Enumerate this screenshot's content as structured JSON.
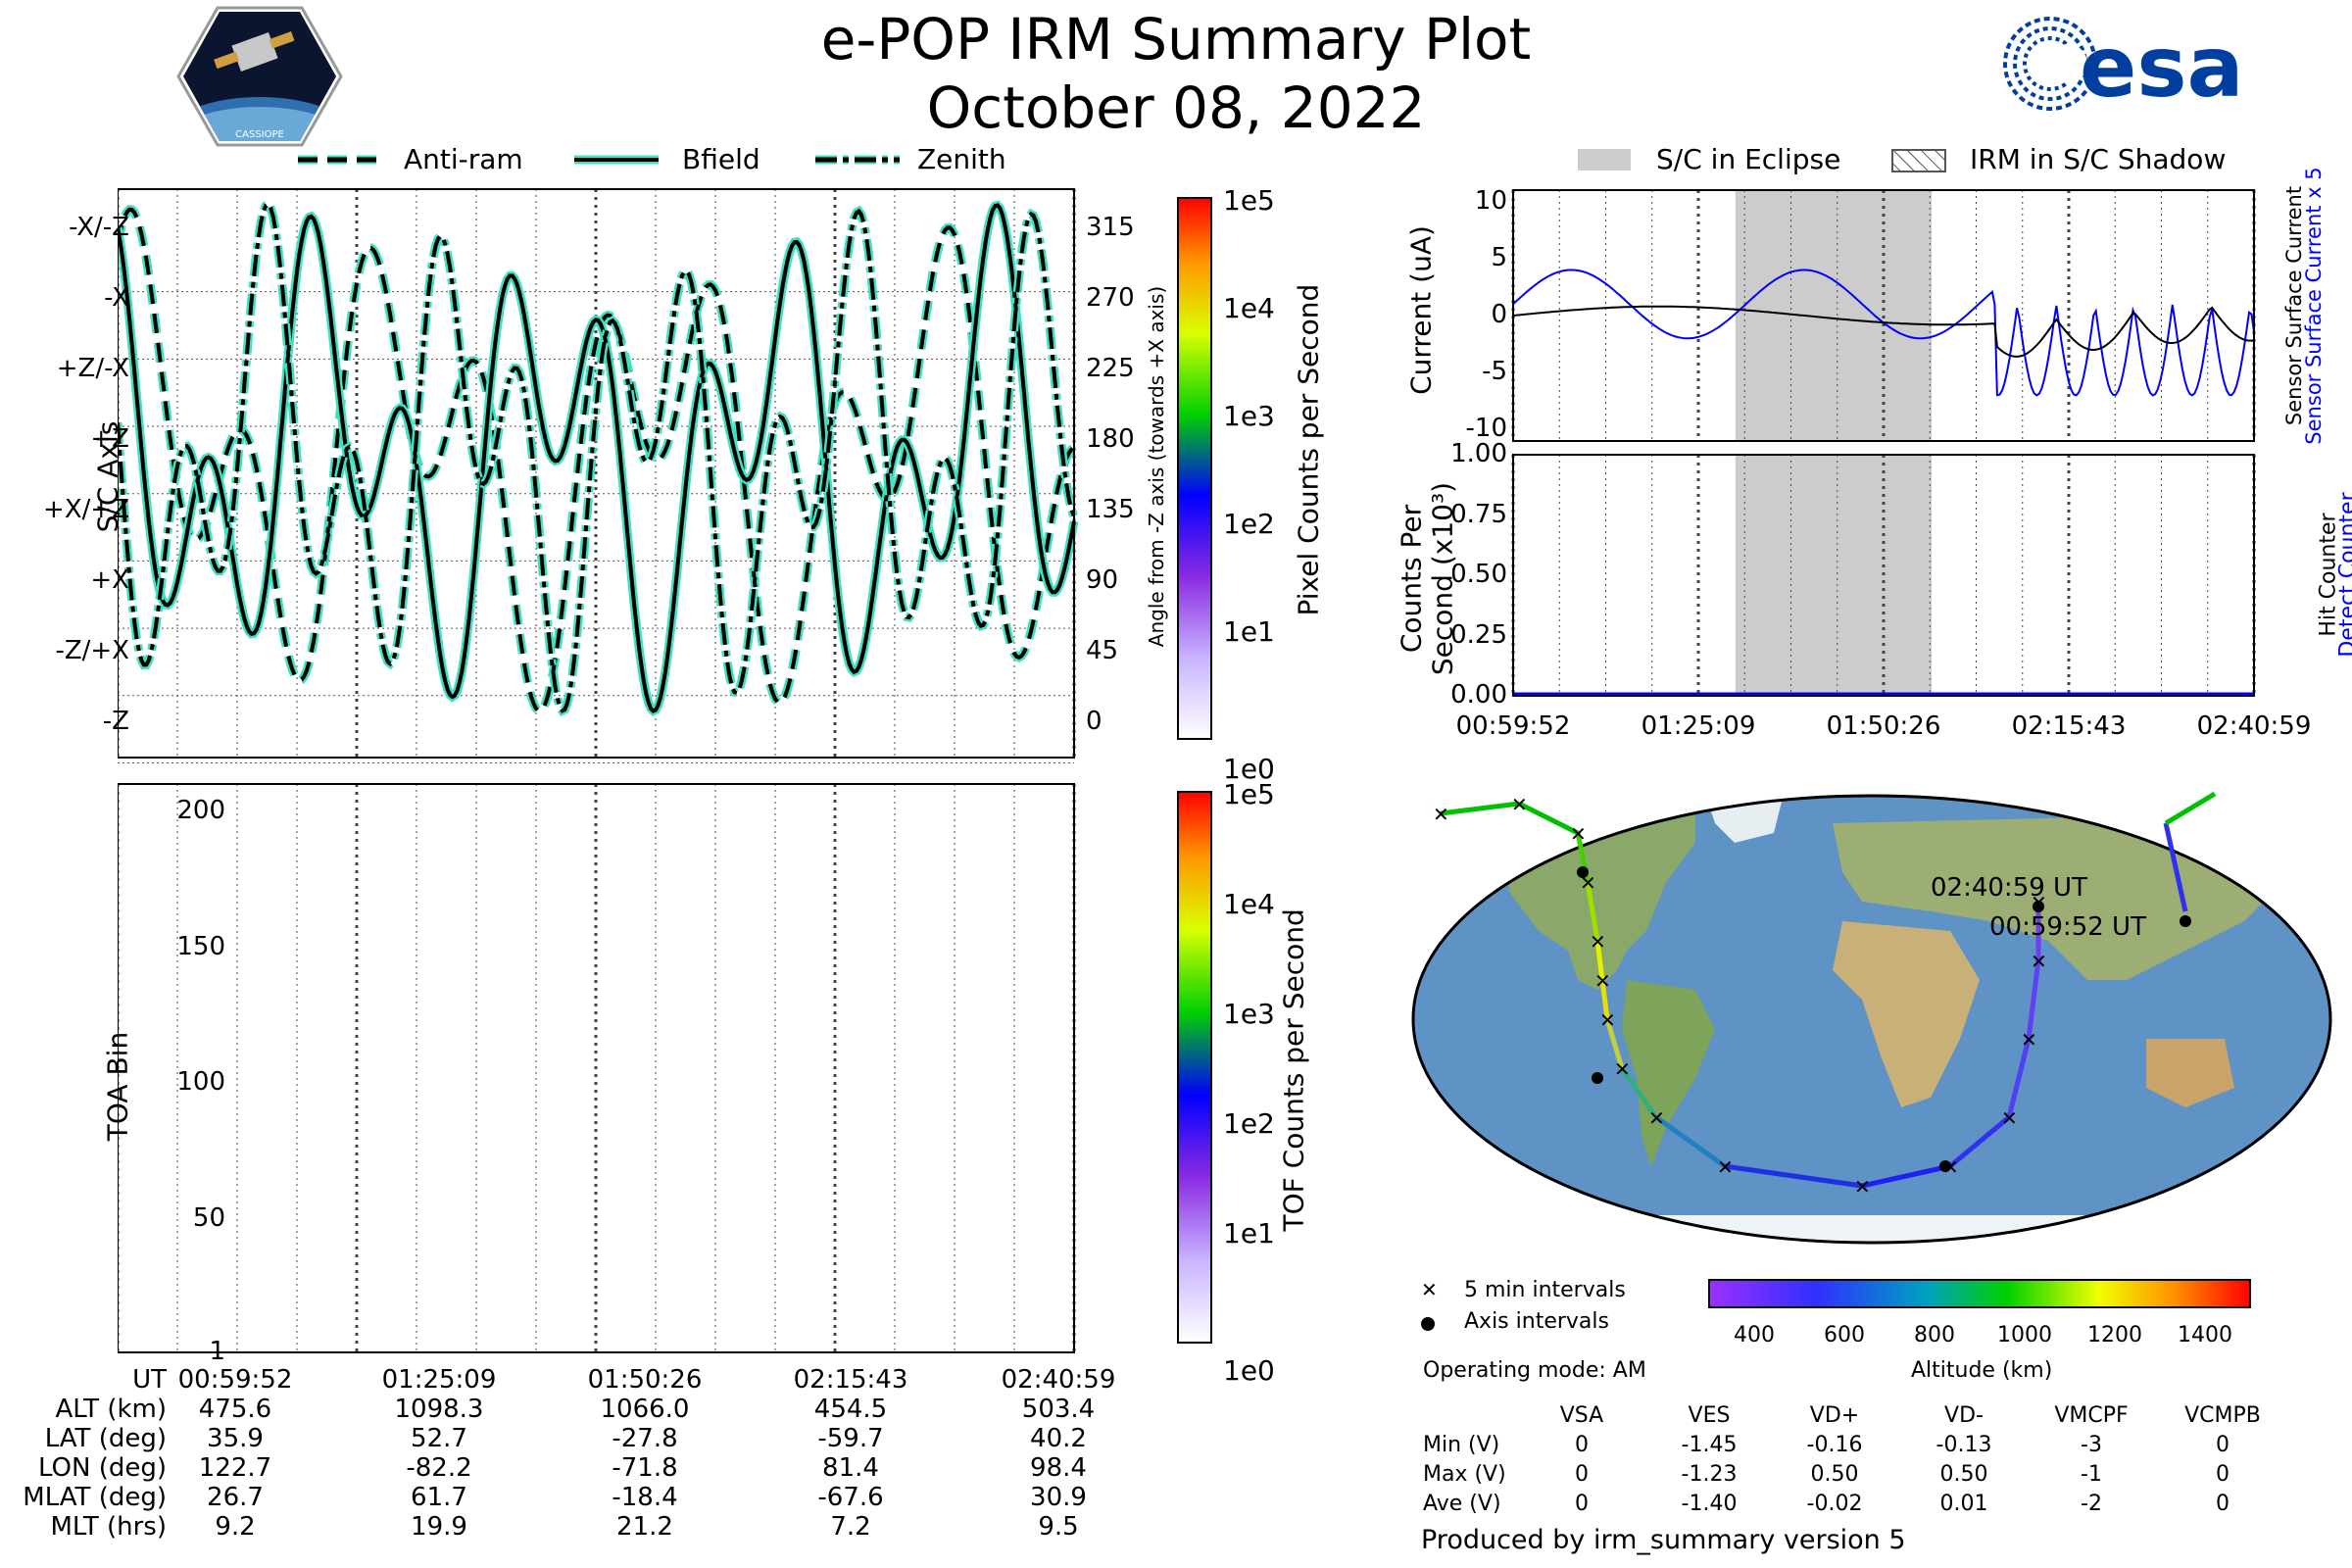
{
  "header": {
    "title": "e-POP IRM Summary Plot",
    "date": "October 08, 2022",
    "left_logo_text": "CASSIOPE",
    "esa_logo_text": "esa"
  },
  "colors": {
    "series_line": "#000000",
    "series_glow": "#40e0c0",
    "eclipse": "#cccccc",
    "blue": "#0000ff",
    "panel_border": "#000000"
  },
  "legends": {
    "attitude": [
      "Anti-ram",
      "Bfield",
      "Zenith"
    ],
    "eclipse": [
      "S/C in Eclipse",
      "IRM in S/C Shadow"
    ],
    "map": [
      "5 min intervals",
      "Axis intervals"
    ]
  },
  "chart_data": [
    {
      "id": "attitude",
      "type": "line",
      "ylabel": "S/C Axis",
      "y2label": "Angle from -Z axis (towards +X axis)",
      "yticks_left": [
        "-X/-Z",
        "-X",
        "+Z/-X",
        "+Z",
        "+X/+Z",
        "+X",
        "-Z/+X",
        "-Z"
      ],
      "yticks_right": [
        "315",
        "270",
        "225",
        "180",
        "135",
        "90",
        "45",
        "0"
      ],
      "ylim": [
        0,
        360
      ],
      "series": [
        {
          "name": "Anti-ram",
          "style": "dashed"
        },
        {
          "name": "Bfield",
          "style": "solid"
        },
        {
          "name": "Zenith",
          "style": "dashdot"
        }
      ],
      "colorbar": {
        "label": "Pixel Counts per Second",
        "ticks": [
          "1e5",
          "1e4",
          "1e3",
          "1e2",
          "1e1",
          "1e0"
        ]
      }
    },
    {
      "id": "toa",
      "type": "heatmap",
      "ylabel": "TOA Bin",
      "yticks": [
        "200",
        "150",
        "100",
        "50",
        "1"
      ],
      "ylim": [
        1,
        210
      ],
      "colorbar": {
        "label": "TOF Counts per Second",
        "ticks": [
          "1e5",
          "1e4",
          "1e3",
          "1e2",
          "1e1",
          "1e0"
        ]
      },
      "xticks": [
        "00:59:52",
        "01:25:09",
        "01:50:26",
        "02:15:43",
        "02:40:59"
      ]
    },
    {
      "id": "current",
      "type": "line",
      "ylabel": "Current (uA)",
      "yticks": [
        "10",
        "5",
        "0",
        "-5",
        "-10"
      ],
      "ylim": [
        -11,
        11
      ],
      "right_labels": [
        {
          "text": "Sensor Surface Current x 5",
          "color": "blue"
        },
        {
          "text": "Sensor Surface Current",
          "color": "black"
        }
      ],
      "eclipse_range": [
        "01:31:00",
        "01:56:00"
      ],
      "series": [
        {
          "name": "Sensor Surface Current x 5",
          "color": "blue"
        },
        {
          "name": "Sensor Surface Current",
          "color": "black"
        }
      ]
    },
    {
      "id": "counts",
      "type": "line",
      "ylabel": "Counts Per",
      "ylabel2": "Second (x10³)",
      "yticks": [
        "1.00",
        "0.75",
        "0.50",
        "0.25",
        "0.00"
      ],
      "ylim": [
        0,
        1
      ],
      "xticks": [
        "00:59:52",
        "01:25:09",
        "01:50:26",
        "02:15:43",
        "02:40:59"
      ],
      "right_labels": [
        {
          "text": "Detect Counter",
          "color": "blue"
        },
        {
          "text": "Hit Counter",
          "color": "black"
        }
      ],
      "series": [
        {
          "name": "Detect Counter",
          "values": [
            0,
            0
          ]
        },
        {
          "name": "Hit Counter",
          "values": [
            0,
            0
          ]
        }
      ]
    },
    {
      "id": "altitude_colorbar",
      "type": "heatmap",
      "label": "Altitude (km)",
      "ticks": [
        "400",
        "600",
        "800",
        "1000",
        "1200",
        "1400"
      ],
      "range": [
        300,
        1500
      ]
    }
  ],
  "map": {
    "label_start": "00:59:52 UT",
    "label_end": "02:40:59 UT"
  },
  "ephemeris": {
    "row_labels": [
      "UT",
      "ALT (km)",
      "LAT (deg)",
      "LON (deg)",
      "MLAT (deg)",
      "MLT (hrs)"
    ],
    "columns": [
      [
        "00:59:52",
        "475.6",
        "35.9",
        "122.7",
        "26.7",
        "9.2"
      ],
      [
        "01:25:09",
        "1098.3",
        "52.7",
        "-82.2",
        "61.7",
        "19.9"
      ],
      [
        "01:50:26",
        "1066.0",
        "-27.8",
        "-71.8",
        "-18.4",
        "21.2"
      ],
      [
        "02:15:43",
        "454.5",
        "-59.7",
        "81.4",
        "-67.6",
        "7.2"
      ],
      [
        "02:40:59",
        "503.4",
        "40.2",
        "98.4",
        "30.9",
        "9.5"
      ]
    ]
  },
  "operating_mode": "Operating mode: AM",
  "voltages": {
    "headers": [
      "VSA",
      "VES",
      "VD+",
      "VD-",
      "VMCPF",
      "VCMPB"
    ],
    "rows": [
      {
        "label": "Min (V)",
        "values": [
          "0",
          "-1.45",
          "-0.16",
          "-0.13",
          "-3",
          "0"
        ]
      },
      {
        "label": "Max (V)",
        "values": [
          "0",
          "-1.23",
          "0.50",
          "0.50",
          "-1",
          "0"
        ]
      },
      {
        "label": "Ave (V)",
        "values": [
          "0",
          "-1.40",
          "-0.02",
          "0.01",
          "-2",
          "0"
        ]
      }
    ]
  },
  "footer": "Produced by irm_summary version 5"
}
